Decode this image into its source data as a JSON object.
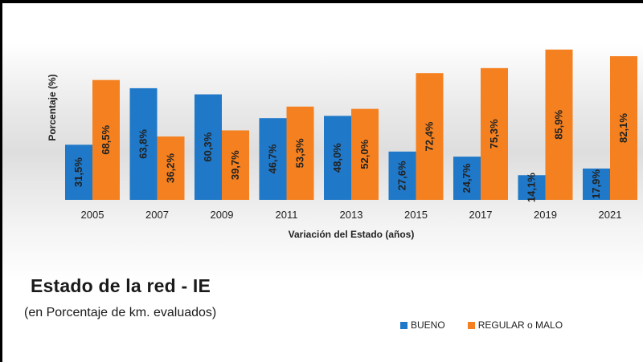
{
  "chart_data": {
    "type": "bar",
    "title": "Estado de la red - IE",
    "subtitle": "(en Porcentaje de km. evaluados)",
    "xlabel": "Variación del Estado (años)",
    "ylabel": "Porcentaje (%)",
    "categories": [
      "2005",
      "2007",
      "2009",
      "2011",
      "2013",
      "2015",
      "2017",
      "2019",
      "2021"
    ],
    "series": [
      {
        "name": "BUENO",
        "color": "#1f78c8",
        "values": [
          31.5,
          63.8,
          60.3,
          46.7,
          48.0,
          27.6,
          24.7,
          14.1,
          17.9
        ],
        "labels": [
          "31,5%",
          "63,8%",
          "60,3%",
          "46,7%",
          "48,0%",
          "27,6%",
          "24,7%",
          "14,1%",
          "17,9%"
        ]
      },
      {
        "name": "REGULAR o MALO",
        "color": "#f5801f",
        "values": [
          68.5,
          36.2,
          39.7,
          53.3,
          52.0,
          72.4,
          75.3,
          85.9,
          82.1
        ],
        "labels": [
          "68,5%",
          "36,2%",
          "39,7%",
          "53,3%",
          "52,0%",
          "72,4%",
          "75,3%",
          "85,9%",
          "82,1%"
        ]
      }
    ],
    "ylim": [
      0,
      100
    ],
    "grid": false,
    "legend": "bottom-right"
  }
}
